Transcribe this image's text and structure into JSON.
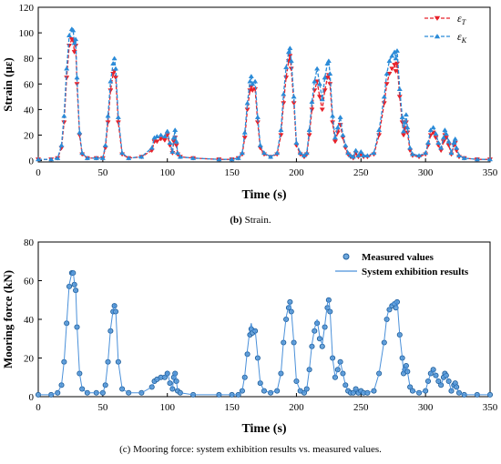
{
  "captions": {
    "b_prefix": "(b)",
    "b_text": "Strain.",
    "c_text": "(c) Mooring force: system exhibition results vs. measured values."
  },
  "colors": {
    "epsT": "#e8212a",
    "epsK": "#2b8bd8",
    "measured_edge": "#1f5f9e",
    "measured_fill": "#6fa8dc",
    "system_line": "#4a90d9"
  },
  "chart_data": [
    {
      "type": "line",
      "title": "",
      "xlabel": "Time (s)",
      "ylabel": "Strain (με)",
      "xlim": [
        0,
        350
      ],
      "ylim": [
        -1,
        120
      ],
      "xticks": [
        0,
        50,
        100,
        150,
        200,
        250,
        300,
        350
      ],
      "yticks": [
        0,
        20,
        40,
        60,
        80,
        100,
        120
      ],
      "legend": "top-right",
      "grid": false,
      "series": [
        {
          "name_main": "ε",
          "name_sub": "T",
          "marker": "triangle-down",
          "line": "dashed",
          "color": "#e8212a",
          "x": [
            0,
            10,
            15,
            18,
            20,
            22,
            24,
            26,
            27,
            28,
            29,
            30,
            32,
            34,
            38,
            45,
            50,
            52,
            54,
            56,
            58,
            59,
            60,
            62,
            65,
            70,
            80,
            88,
            90,
            92,
            95,
            98,
            100,
            102,
            104,
            105,
            106,
            107,
            108,
            110,
            120,
            140,
            150,
            155,
            158,
            160,
            162,
            164,
            165,
            166,
            168,
            170,
            172,
            175,
            180,
            185,
            188,
            190,
            192,
            194,
            195,
            196,
            198,
            200,
            203,
            206,
            208,
            210,
            212,
            214,
            216,
            218,
            220,
            222,
            224,
            225,
            226,
            228,
            230,
            232,
            234,
            236,
            238,
            240,
            242,
            244,
            246,
            248,
            250,
            252,
            255,
            260,
            264,
            268,
            270,
            272,
            274,
            276,
            277,
            278,
            280,
            282,
            283,
            284,
            285,
            286,
            288,
            290,
            295,
            300,
            302,
            304,
            306,
            308,
            310,
            312,
            314,
            315,
            316,
            318,
            320,
            322,
            323,
            324,
            326,
            330,
            340,
            350
          ],
          "y": [
            1,
            1,
            2,
            10,
            30,
            65,
            90,
            95,
            94,
            85,
            90,
            60,
            20,
            5,
            2,
            2,
            2,
            10,
            30,
            55,
            68,
            70,
            65,
            30,
            5,
            2,
            3,
            8,
            15,
            15,
            17,
            16,
            20,
            12,
            6,
            15,
            18,
            12,
            5,
            3,
            2,
            1,
            1,
            2,
            5,
            18,
            40,
            55,
            58,
            55,
            56,
            30,
            10,
            5,
            3,
            5,
            20,
            45,
            65,
            78,
            82,
            72,
            45,
            12,
            5,
            3,
            5,
            20,
            40,
            55,
            62,
            50,
            40,
            55,
            65,
            67,
            60,
            30,
            15,
            22,
            28,
            18,
            10,
            5,
            3,
            2,
            6,
            3,
            5,
            3,
            3,
            5,
            20,
            45,
            60,
            68,
            72,
            75,
            70,
            76,
            50,
            30,
            20,
            25,
            30,
            22,
            8,
            4,
            3,
            5,
            12,
            20,
            22,
            18,
            12,
            8,
            15,
            20,
            18,
            12,
            5,
            12,
            14,
            8,
            3,
            2,
            1,
            1
          ]
        },
        {
          "name_main": "ε",
          "name_sub": "K",
          "marker": "triangle-up",
          "line": "dashed",
          "color": "#2b8bd8",
          "x": [
            0,
            10,
            15,
            18,
            20,
            22,
            24,
            26,
            27,
            28,
            29,
            30,
            32,
            34,
            38,
            45,
            50,
            52,
            54,
            56,
            58,
            59,
            60,
            62,
            65,
            70,
            80,
            88,
            90,
            92,
            95,
            98,
            100,
            102,
            104,
            105,
            106,
            107,
            108,
            110,
            120,
            140,
            150,
            155,
            158,
            160,
            162,
            164,
            165,
            166,
            168,
            170,
            172,
            175,
            180,
            185,
            188,
            190,
            192,
            194,
            195,
            196,
            198,
            200,
            203,
            206,
            208,
            210,
            212,
            214,
            216,
            218,
            220,
            222,
            224,
            225,
            226,
            228,
            230,
            232,
            234,
            236,
            238,
            240,
            242,
            244,
            246,
            248,
            250,
            252,
            255,
            260,
            264,
            268,
            270,
            272,
            274,
            276,
            277,
            278,
            280,
            282,
            283,
            284,
            285,
            286,
            288,
            290,
            295,
            300,
            302,
            304,
            306,
            308,
            310,
            312,
            314,
            315,
            316,
            318,
            320,
            322,
            323,
            324,
            326,
            330,
            340,
            350
          ],
          "y": [
            1,
            1,
            2,
            12,
            35,
            72,
            98,
            103,
            102,
            92,
            95,
            65,
            22,
            6,
            2,
            2,
            2,
            12,
            35,
            62,
            76,
            80,
            72,
            34,
            6,
            2,
            3,
            10,
            18,
            19,
            20,
            19,
            23,
            14,
            7,
            18,
            24,
            15,
            6,
            3,
            2,
            1,
            1,
            2,
            6,
            22,
            45,
            62,
            66,
            60,
            62,
            34,
            12,
            6,
            3,
            6,
            24,
            52,
            73,
            85,
            88,
            78,
            50,
            14,
            6,
            4,
            6,
            24,
            46,
            62,
            72,
            60,
            48,
            65,
            76,
            78,
            68,
            35,
            18,
            26,
            34,
            20,
            12,
            6,
            4,
            3,
            8,
            4,
            7,
            4,
            4,
            6,
            24,
            50,
            68,
            78,
            82,
            85,
            80,
            86,
            56,
            34,
            23,
            30,
            36,
            26,
            10,
            5,
            4,
            6,
            14,
            24,
            26,
            21,
            14,
            10,
            18,
            24,
            21,
            15,
            6,
            14,
            17,
            10,
            4,
            2,
            1,
            1
          ]
        }
      ]
    },
    {
      "type": "line",
      "title": "",
      "xlabel": "Time (s)",
      "ylabel": "Mooring force (kN)",
      "xlim": [
        0,
        350
      ],
      "ylim": [
        0,
        80
      ],
      "xticks": [
        0,
        50,
        100,
        150,
        200,
        250,
        300,
        350
      ],
      "yticks": [
        0,
        20,
        40,
        60,
        80
      ],
      "legend": "top-right",
      "grid": false,
      "series": [
        {
          "name": "Measured values",
          "marker": "circle",
          "line": "none",
          "color": "#1f5f9e",
          "x": [
            0,
            10,
            15,
            18,
            20,
            22,
            24,
            26,
            27,
            28,
            29,
            30,
            32,
            34,
            38,
            45,
            50,
            52,
            54,
            56,
            58,
            59,
            60,
            62,
            65,
            70,
            80,
            88,
            90,
            92,
            95,
            98,
            100,
            102,
            104,
            105,
            106,
            107,
            108,
            110,
            120,
            140,
            150,
            155,
            158,
            160,
            162,
            164,
            165,
            166,
            168,
            170,
            172,
            175,
            180,
            185,
            188,
            190,
            192,
            194,
            195,
            196,
            198,
            200,
            203,
            206,
            208,
            210,
            212,
            214,
            216,
            218,
            220,
            222,
            224,
            225,
            226,
            228,
            230,
            232,
            234,
            236,
            238,
            240,
            242,
            244,
            246,
            248,
            250,
            252,
            255,
            260,
            264,
            268,
            270,
            272,
            274,
            276,
            277,
            278,
            280,
            282,
            283,
            284,
            285,
            286,
            288,
            290,
            295,
            300,
            302,
            304,
            306,
            308,
            310,
            312,
            314,
            315,
            316,
            318,
            320,
            322,
            323,
            324,
            326,
            330,
            340,
            350
          ],
          "y": [
            1,
            1,
            2,
            6,
            18,
            38,
            57,
            64,
            64,
            58,
            55,
            36,
            12,
            4,
            2,
            2,
            2,
            6,
            18,
            34,
            44,
            47,
            44,
            18,
            4,
            2,
            2,
            5,
            8,
            9,
            10,
            10,
            12,
            7,
            4,
            10,
            12,
            8,
            3,
            2,
            1,
            1,
            1,
            1,
            3,
            10,
            22,
            32,
            35,
            33,
            34,
            20,
            7,
            3,
            2,
            3,
            12,
            28,
            40,
            46,
            49,
            44,
            28,
            8,
            3,
            2,
            4,
            14,
            26,
            34,
            38,
            30,
            26,
            36,
            46,
            50,
            44,
            20,
            10,
            14,
            18,
            12,
            6,
            3,
            2,
            2,
            4,
            2,
            3,
            2,
            2,
            3,
            12,
            28,
            40,
            45,
            47,
            48,
            46,
            49,
            32,
            20,
            12,
            14,
            16,
            13,
            5,
            3,
            2,
            3,
            8,
            12,
            14,
            11,
            8,
            6,
            10,
            12,
            11,
            8,
            3,
            6,
            7,
            5,
            2,
            1,
            1,
            1
          ]
        },
        {
          "name": "System exhibition results",
          "marker": "none",
          "line": "solid",
          "color": "#4a90d9",
          "x": [
            0,
            10,
            15,
            18,
            20,
            22,
            24,
            26,
            27,
            28,
            29,
            30,
            32,
            34,
            38,
            45,
            50,
            52,
            54,
            56,
            58,
            59,
            60,
            62,
            65,
            70,
            80,
            88,
            90,
            92,
            95,
            98,
            100,
            102,
            104,
            105,
            106,
            107,
            108,
            110,
            120,
            140,
            150,
            155,
            158,
            160,
            162,
            164,
            165,
            166,
            168,
            170,
            172,
            175,
            180,
            185,
            188,
            190,
            192,
            194,
            195,
            196,
            198,
            200,
            203,
            206,
            208,
            210,
            212,
            214,
            216,
            218,
            220,
            222,
            224,
            225,
            226,
            228,
            230,
            232,
            234,
            236,
            238,
            240,
            242,
            244,
            246,
            248,
            250,
            252,
            255,
            260,
            264,
            268,
            270,
            272,
            274,
            276,
            277,
            278,
            280,
            282,
            283,
            284,
            285,
            286,
            288,
            290,
            295,
            300,
            302,
            304,
            306,
            308,
            310,
            312,
            314,
            315,
            316,
            318,
            320,
            322,
            323,
            324,
            326,
            330,
            340,
            350
          ],
          "y": [
            1,
            1,
            2,
            6,
            18,
            38,
            58,
            64,
            65,
            59,
            56,
            37,
            12,
            4,
            2,
            2,
            2,
            6,
            18,
            35,
            45,
            48,
            45,
            18,
            4,
            2,
            2,
            5,
            8,
            9,
            10,
            10,
            13,
            7,
            4,
            10,
            13,
            8,
            3,
            2,
            1,
            1,
            1,
            1,
            3,
            11,
            24,
            35,
            38,
            34,
            35,
            21,
            7,
            3,
            2,
            3,
            12,
            29,
            41,
            47,
            49,
            45,
            28,
            8,
            3,
            2,
            4,
            14,
            27,
            35,
            40,
            31,
            27,
            37,
            48,
            51,
            45,
            20,
            10,
            14,
            18,
            12,
            6,
            3,
            2,
            2,
            4,
            2,
            3,
            2,
            2,
            3,
            12,
            29,
            41,
            46,
            48,
            49,
            47,
            50,
            32,
            20,
            12,
            14,
            16,
            13,
            5,
            3,
            2,
            3,
            8,
            12,
            14,
            11,
            8,
            6,
            10,
            12,
            11,
            8,
            3,
            6,
            7,
            5,
            2,
            1,
            1,
            1
          ]
        }
      ]
    }
  ]
}
